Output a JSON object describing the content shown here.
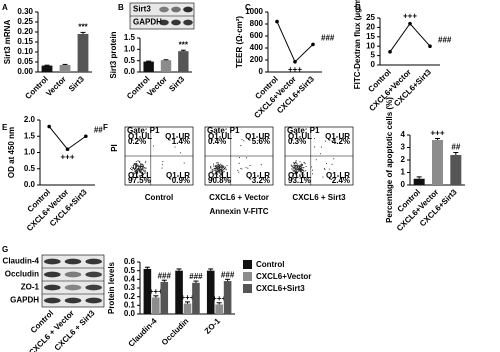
{
  "chart_data": [
    {
      "panel": "A",
      "type": "bar",
      "ylabel": "Sirt3 mRNA",
      "categories": [
        "Control",
        "Vector",
        "Sirt3"
      ],
      "values": [
        0.032,
        0.035,
        0.19
      ],
      "errors": [
        0.002,
        0.003,
        0.008
      ],
      "colors": [
        "#111111",
        "#8c8c8c",
        "#555555"
      ],
      "annotations": [
        null,
        null,
        "***"
      ],
      "ylim": [
        0,
        0.3
      ],
      "yticks": [
        {
          "value": 0,
          "label": "0.00"
        },
        0.05,
        {
          "value": 0.1,
          "label": "0.10"
        },
        0.15,
        {
          "value": 0.2,
          "label": "0.20"
        },
        0.25,
        {
          "value": 0.3,
          "label": "0.30"
        }
      ]
    },
    {
      "panel": "B",
      "type": "blot",
      "rows": [
        "Sirt3",
        "GAPDH"
      ]
    },
    {
      "type": "bar",
      "ylabel": "Sirt3 protein",
      "categories": [
        "Control",
        "Vector",
        "Sirt3"
      ],
      "values": [
        0.46,
        0.52,
        0.92
      ],
      "errors": [
        0.02,
        0.02,
        0.04
      ],
      "colors": [
        "#111111",
        "#8c8c8c",
        "#555555"
      ],
      "annotations": [
        null,
        null,
        "***"
      ],
      "ylim": [
        0,
        1.5
      ],
      "yticks": [
        {
          "value": 0,
          "label": "0.0"
        },
        0.5,
        {
          "value": 1,
          "label": "1.0"
        },
        1.5
      ]
    },
    {
      "panel": "C",
      "type": "line",
      "ylabel": "TEER (Ω·cm²)",
      "categories": [
        "Control",
        "CXCL6+Vector",
        "CXCL6+Sirt3"
      ],
      "values": [
        840,
        170,
        460
      ],
      "annotations": [
        null,
        "+++",
        "###"
      ],
      "color": "#000000",
      "ylim": [
        0,
        1000
      ],
      "yticks": [
        0,
        200,
        400,
        600,
        800,
        1000
      ]
    },
    {
      "panel": "D",
      "type": "line",
      "ylabel": "FITC-Dextran flux (μg/ml)",
      "categories": [
        "Control",
        "CXCL6+Vector",
        "CXCL6+Sirt3"
      ],
      "values": [
        7,
        22,
        10
      ],
      "annotations": [
        null,
        "+++",
        "###"
      ],
      "color": "#000000",
      "ylim": [
        0,
        25
      ],
      "yticks": [
        0,
        5,
        10,
        15,
        20,
        25
      ]
    },
    {
      "panel": "E",
      "type": "line",
      "ylabel": "OD at 450 nm",
      "categories": [
        "Control",
        "CXCL6+Vector",
        "CXCL6+Sirt3"
      ],
      "values": [
        1.8,
        1.1,
        1.5
      ],
      "annotations": [
        null,
        "+++",
        "##"
      ],
      "color": "#000000",
      "ylim": [
        0,
        2
      ],
      "yticks": [
        {
          "value": 0,
          "label": "0.0"
        },
        0.5,
        {
          "value": 1,
          "label": "1.0"
        },
        1.5,
        {
          "value": 2,
          "label": "2.0"
        }
      ]
    },
    {
      "panel": "F",
      "type": "flow",
      "ylabel": "PI",
      "xlabel": "Annexin V-FITC",
      "plots": [
        {
          "label": "Control",
          "gate": "Gate: P1",
          "quadrants": [
            {
              "name": "Q1-UL",
              "pct": "0.2%"
            },
            {
              "name": "Q1-UR",
              "pct": "1.4%"
            },
            {
              "name": "Q1-LL",
              "pct": "97.5%"
            },
            {
              "name": "Q1-LR",
              "pct": "0.9%"
            }
          ]
        },
        {
          "label": "CXCL6 + Vector",
          "gate": "Gate: P1",
          "quadrants": [
            {
              "name": "Q1-UL",
              "pct": "0.4%"
            },
            {
              "name": "Q1-UR",
              "pct": "5.6%"
            },
            {
              "name": "Q1-LL",
              "pct": "90.8%"
            },
            {
              "name": "Q1-LR",
              "pct": "3.2%"
            }
          ]
        },
        {
          "label": "CXCL6 + Sirt3",
          "gate": "Gate: P1",
          "quadrants": [
            {
              "name": "Q1-UL",
              "pct": "0.3%"
            },
            {
              "name": "Q1-UR",
              "pct": "4.2%"
            },
            {
              "name": "Q1-LL",
              "pct": "93.1%"
            },
            {
              "name": "Q1-LR",
              "pct": "2.4%"
            }
          ]
        }
      ]
    },
    {
      "type": "bar",
      "ylabel": "Percentage of apoptotic cells (%)",
      "categories": [
        "Control",
        "CXCL6+Vector",
        "CXCL6+Sirt3"
      ],
      "values": [
        0.5,
        3.6,
        2.4
      ],
      "errors": [
        0.15,
        0.12,
        0.2
      ],
      "colors": [
        "#111111",
        "#8c8c8c",
        "#555555"
      ],
      "annotations": [
        null,
        "+++",
        "##"
      ],
      "ylim": [
        0,
        4
      ],
      "yticks": [
        0,
        1,
        2,
        3,
        4
      ]
    },
    {
      "panel": "G",
      "type": "blot",
      "rows": [
        "Claudin-4",
        "Occludin",
        "ZO-1",
        "GAPDH"
      ],
      "lanes": [
        "Control",
        "CXCL6 + Vector",
        "CXCL6 + Sirt3"
      ]
    },
    {
      "type": "grouped_bar",
      "ylabel": "Protein levels",
      "categories": [
        "Claudin-4",
        "Occludin",
        "ZO-1"
      ],
      "series": [
        {
          "name": "Control",
          "color": "#111111",
          "values": [
            0.52,
            0.5,
            0.5
          ],
          "errors": [
            0.02,
            0.02,
            0.02
          ],
          "annotations": [
            null,
            null,
            null
          ]
        },
        {
          "name": "CXCL6+Vector",
          "color": "#8c8c8c",
          "values": [
            0.19,
            0.12,
            0.11
          ],
          "errors": [
            0.02,
            0.02,
            0.02
          ],
          "annotations": [
            "+++",
            "+++",
            "+++"
          ]
        },
        {
          "name": "CXCL6+Sirt3",
          "color": "#555555",
          "values": [
            0.37,
            0.36,
            0.38
          ],
          "errors": [
            0.02,
            0.02,
            0.02
          ],
          "annotations": [
            "###",
            "###",
            "###"
          ]
        }
      ],
      "ylim": [
        0,
        0.6
      ],
      "yticks": [
        {
          "value": 0,
          "label": "0.0"
        },
        0.1,
        0.2,
        0.3,
        0.4,
        0.5,
        0.6
      ]
    }
  ]
}
